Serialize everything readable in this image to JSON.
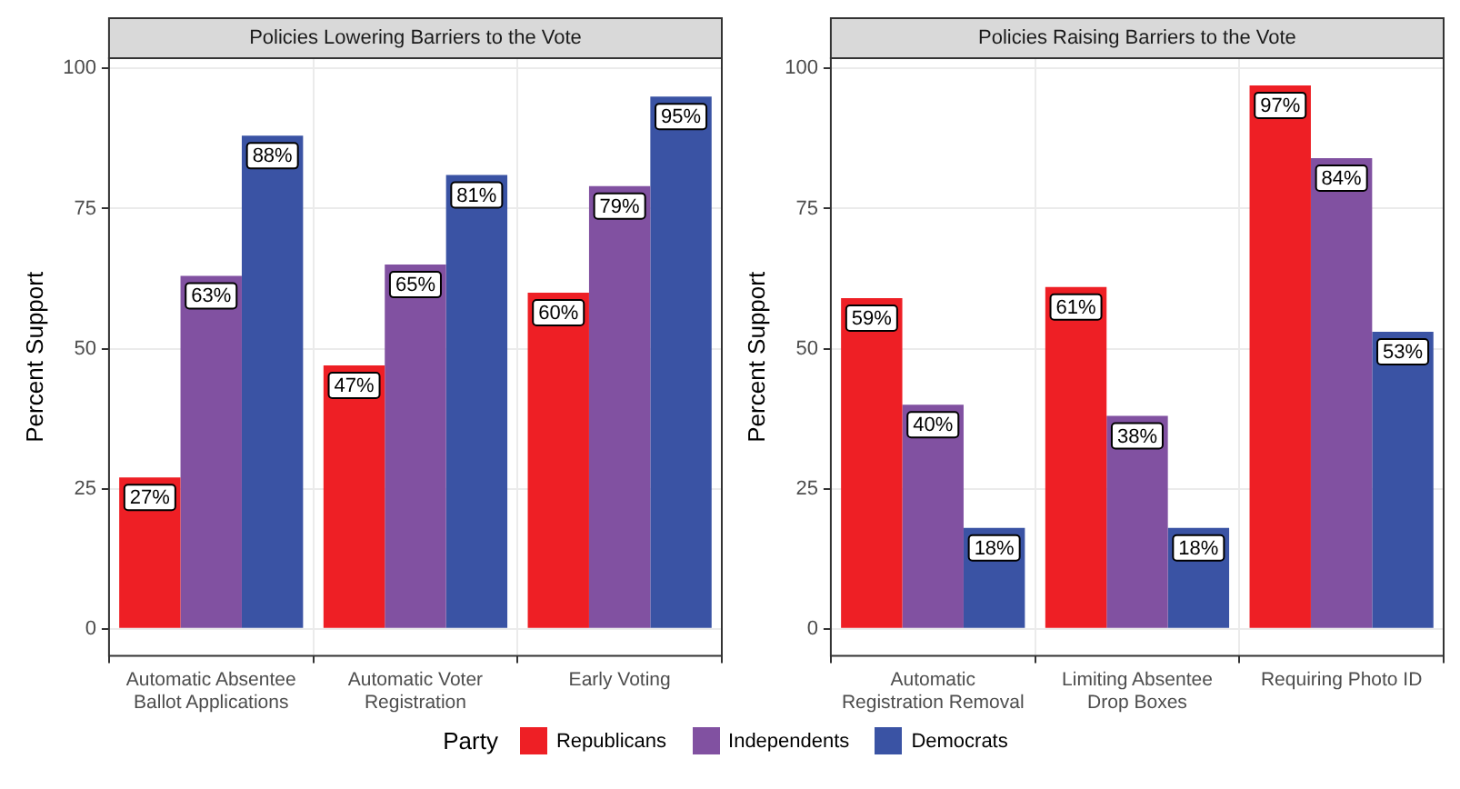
{
  "chart_data": [
    {
      "type": "bar",
      "title": "Policies Lowering Barriers to the Vote",
      "ylabel": "Percent Support",
      "categories": [
        "Automatic Absentee Ballot Applications",
        "Automatic Voter Registration",
        "Early Voting"
      ],
      "series": [
        {
          "name": "Republicans",
          "color": "#ee1f25",
          "values": [
            27,
            47,
            60
          ],
          "value_labels": [
            "27%",
            "47%",
            "60%"
          ]
        },
        {
          "name": "Independents",
          "color": "#8151a1",
          "values": [
            63,
            65,
            79
          ],
          "value_labels": [
            "63%",
            "65%",
            "79%"
          ]
        },
        {
          "name": "Democrats",
          "color": "#3a53a4",
          "values": [
            88,
            81,
            95
          ],
          "value_labels": [
            "88%",
            "81%",
            "95%"
          ]
        }
      ],
      "ylim": [
        -4.85,
        101.85
      ],
      "yticks": [
        0,
        25,
        50,
        75,
        100
      ],
      "grid": true,
      "legend": "bottom",
      "legend_title": "Party"
    },
    {
      "type": "bar",
      "title": "Policies Raising Barriers to the Vote",
      "ylabel": "Percent Support",
      "categories": [
        "Automatic Registration Removal",
        "Limiting Absentee Drop Boxes",
        "Requiring Photo ID"
      ],
      "series": [
        {
          "color": "#ee1f25",
          "values": [
            59,
            61,
            97
          ],
          "value_labels": [
            "59%",
            "61%",
            "97%"
          ]
        },
        {
          "color": "#8151a1",
          "values": [
            40,
            38,
            84
          ],
          "value_labels": [
            "40%",
            "38%",
            "84%"
          ]
        },
        {
          "color": "#3a53a4",
          "values": [
            18,
            18,
            53
          ],
          "value_labels": [
            "18%",
            "18%",
            "53%"
          ]
        }
      ],
      "ylim": [
        -4.85,
        101.85
      ],
      "yticks": [
        0,
        25,
        50,
        75,
        100
      ],
      "grid": true
    }
  ]
}
